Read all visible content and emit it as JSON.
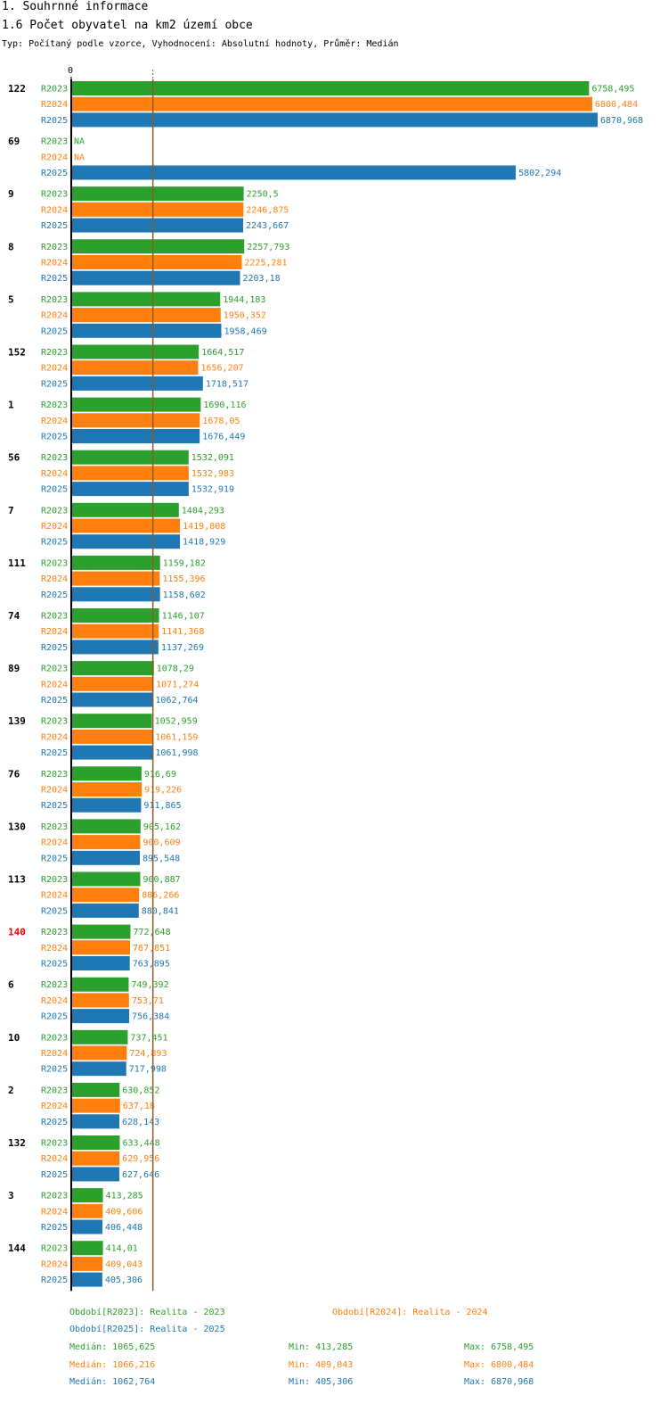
{
  "header": {
    "section": "1. Souhrnné informace",
    "title": "1.6 Počet obyvatel na km2 území obce",
    "subtitle": "Typ: Počítaný podle vzorce, Vyhodnocení: Absolutní hodnoty, Průměr: Medián"
  },
  "chart_data": {
    "type": "bar",
    "orientation": "horizontal",
    "axis_zero_label": "0",
    "xlim": [
      0,
      6870.968
    ],
    "reference_line": {
      "label": "Medián",
      "value": 1065.625
    },
    "series_colors": {
      "R2023": "#2ca02c",
      "R2024": "#ff7f0e",
      "R2025": "#1f77b4"
    },
    "highlight_color": "#ff0000",
    "series_names": [
      "R2023",
      "R2024",
      "R2025"
    ],
    "categories": [
      {
        "label": "122",
        "highlight": false,
        "values": [
          6758.495,
          6800.484,
          6870.968
        ],
        "labels": [
          "6758,495",
          "6800,484",
          "6870,968"
        ]
      },
      {
        "label": "69",
        "highlight": false,
        "values": [
          null,
          null,
          5802.294
        ],
        "labels": [
          "NA",
          "NA",
          "5802,294"
        ]
      },
      {
        "label": "9",
        "highlight": false,
        "values": [
          2250.5,
          2246.875,
          2243.667
        ],
        "labels": [
          "2250,5",
          "2246,875",
          "2243,667"
        ]
      },
      {
        "label": "8",
        "highlight": false,
        "values": [
          2257.793,
          2225.281,
          2203.18
        ],
        "labels": [
          "2257,793",
          "2225,281",
          "2203,18"
        ]
      },
      {
        "label": "5",
        "highlight": false,
        "values": [
          1944.183,
          1950.352,
          1958.469
        ],
        "labels": [
          "1944,183",
          "1950,352",
          "1958,469"
        ]
      },
      {
        "label": "152",
        "highlight": false,
        "values": [
          1664.517,
          1656.207,
          1718.517
        ],
        "labels": [
          "1664,517",
          "1656,207",
          "1718,517"
        ]
      },
      {
        "label": "1",
        "highlight": false,
        "values": [
          1690.116,
          1678.05,
          1676.449
        ],
        "labels": [
          "1690,116",
          "1678,05",
          "1676,449"
        ]
      },
      {
        "label": "56",
        "highlight": false,
        "values": [
          1532.091,
          1532.983,
          1532.919
        ],
        "labels": [
          "1532,091",
          "1532,983",
          "1532,919"
        ]
      },
      {
        "label": "7",
        "highlight": false,
        "values": [
          1404.293,
          1419.808,
          1418.929
        ],
        "labels": [
          "1404,293",
          "1419,808",
          "1418,929"
        ]
      },
      {
        "label": "111",
        "highlight": false,
        "values": [
          1159.182,
          1155.396,
          1158.602
        ],
        "labels": [
          "1159,182",
          "1155,396",
          "1158,602"
        ]
      },
      {
        "label": "74",
        "highlight": false,
        "values": [
          1146.107,
          1141.368,
          1137.269
        ],
        "labels": [
          "1146,107",
          "1141,368",
          "1137,269"
        ]
      },
      {
        "label": "89",
        "highlight": false,
        "values": [
          1078.29,
          1071.274,
          1062.764
        ],
        "labels": [
          "1078,29",
          "1071,274",
          "1062,764"
        ]
      },
      {
        "label": "139",
        "highlight": false,
        "values": [
          1052.959,
          1061.159,
          1061.998
        ],
        "labels": [
          "1052,959",
          "1061,159",
          "1061,998"
        ]
      },
      {
        "label": "76",
        "highlight": false,
        "values": [
          916.69,
          919.226,
          911.865
        ],
        "labels": [
          "916,69",
          "919,226",
          "911,865"
        ]
      },
      {
        "label": "130",
        "highlight": false,
        "values": [
          905.162,
          900.609,
          895.548
        ],
        "labels": [
          "905,162",
          "900,609",
          "895,548"
        ]
      },
      {
        "label": "113",
        "highlight": false,
        "values": [
          900.887,
          886.266,
          880.841
        ],
        "labels": [
          "900,887",
          "886,266",
          "880,841"
        ]
      },
      {
        "label": "140",
        "highlight": true,
        "values": [
          772.648,
          767.851,
          763.895
        ],
        "labels": [
          "772,648",
          "767,851",
          "763,895"
        ]
      },
      {
        "label": "6",
        "highlight": false,
        "values": [
          749.392,
          753.71,
          756.384
        ],
        "labels": [
          "749,392",
          "753,71",
          "756,384"
        ]
      },
      {
        "label": "10",
        "highlight": false,
        "values": [
          737.451,
          724.893,
          717.998
        ],
        "labels": [
          "737,451",
          "724,893",
          "717,998"
        ]
      },
      {
        "label": "2",
        "highlight": false,
        "values": [
          630.852,
          637.18,
          628.143
        ],
        "labels": [
          "630,852",
          "637,18",
          "628,143"
        ]
      },
      {
        "label": "132",
        "highlight": false,
        "values": [
          633.448,
          629.956,
          627.646
        ],
        "labels": [
          "633,448",
          "629,956",
          "627,646"
        ]
      },
      {
        "label": "3",
        "highlight": false,
        "values": [
          413.285,
          409.606,
          406.448
        ],
        "labels": [
          "413,285",
          "409,606",
          "406,448"
        ]
      },
      {
        "label": "144",
        "highlight": false,
        "values": [
          414.01,
          409.043,
          405.306
        ],
        "labels": [
          "414,01",
          "409,043",
          "405,306"
        ]
      }
    ]
  },
  "legend": {
    "periods": [
      {
        "text": "Období[R2023]: Realita - 2023",
        "color": "#2ca02c"
      },
      {
        "text": "Období[R2024]: Realita - 2024",
        "color": "#ff7f0e"
      },
      {
        "text": "Období[R2025]: Realita - 2025",
        "color": "#1f77b4"
      }
    ],
    "stats": [
      {
        "median": "Medián: 1065,625",
        "min": "Min: 413,285",
        "max": "Max: 6758,495",
        "color": "#2ca02c"
      },
      {
        "median": "Medián: 1066,216",
        "min": "Min: 409,043",
        "max": "Max: 6800,484",
        "color": "#ff7f0e"
      },
      {
        "median": "Medián: 1062,764",
        "min": "Min: 405,306",
        "max": "Max: 6870,968",
        "color": "#1f77b4"
      }
    ]
  }
}
